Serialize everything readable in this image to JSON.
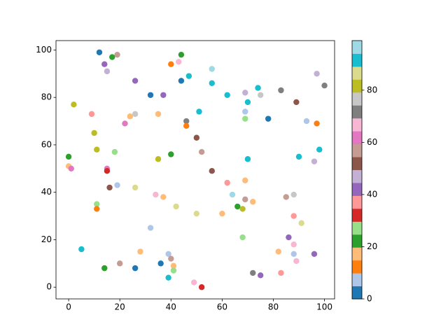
{
  "chart_data": {
    "type": "scatter",
    "x": [
      12,
      19,
      17,
      44,
      14,
      15,
      40,
      43,
      47,
      44,
      26,
      56,
      56,
      97,
      100,
      32,
      37,
      62,
      69,
      74,
      75,
      83,
      70,
      89,
      2,
      9,
      26,
      24,
      35,
      51,
      69,
      78,
      22,
      46,
      46,
      69,
      93,
      97,
      10,
      50,
      11,
      18,
      52,
      98,
      0,
      35,
      40,
      70,
      90,
      96,
      0,
      1,
      15,
      15,
      56,
      69,
      62,
      16,
      19,
      26,
      34,
      37,
      64,
      69,
      72,
      85,
      88,
      11,
      11,
      42,
      66,
      68,
      50,
      60,
      88,
      91,
      32,
      68,
      86,
      88,
      5,
      28,
      39,
      82,
      88,
      96,
      40,
      36,
      89,
      20,
      14,
      26,
      41,
      41,
      72,
      83,
      75,
      39,
      49,
      52
    ],
    "y": [
      99,
      98,
      97,
      98,
      94,
      91,
      94,
      95,
      89,
      87,
      87,
      92,
      86,
      90,
      85,
      81,
      81,
      81,
      82,
      84,
      81,
      83,
      78,
      78,
      77,
      73,
      73,
      72,
      73,
      74,
      74,
      71,
      69,
      70,
      68,
      71,
      70,
      69,
      65,
      63,
      58,
      57,
      57,
      58,
      55,
      54,
      56,
      54,
      55,
      53,
      51,
      50,
      50,
      49,
      49,
      45,
      44,
      42,
      43,
      42,
      39,
      38,
      39,
      37,
      36,
      38,
      39,
      35,
      33,
      34,
      34,
      33,
      31,
      31,
      30,
      27,
      25,
      21,
      21,
      18,
      16,
      15,
      14,
      15,
      14,
      14,
      12,
      10,
      11,
      10,
      8,
      8,
      9,
      7,
      6,
      6,
      5,
      4,
      2,
      0
    ],
    "c": [
      2,
      57,
      22,
      22,
      42,
      47,
      12,
      67,
      92,
      2,
      42,
      97,
      92,
      47,
      72,
      2,
      42,
      92,
      47,
      92,
      77,
      72,
      92,
      52,
      82,
      37,
      77,
      17,
      17,
      92,
      7,
      2,
      62,
      72,
      12,
      27,
      7,
      12,
      82,
      52,
      82,
      27,
      57,
      92,
      22,
      82,
      22,
      92,
      92,
      47,
      17,
      62,
      62,
      32,
      52,
      17,
      37,
      52,
      7,
      87,
      67,
      17,
      97,
      57,
      17,
      57,
      77,
      27,
      12,
      87,
      22,
      82,
      87,
      17,
      37,
      87,
      7,
      27,
      42,
      67,
      92,
      17,
      7,
      17,
      7,
      42,
      57,
      2,
      67,
      57,
      22,
      2,
      17,
      27,
      72,
      37,
      42,
      92,
      67,
      32
    ],
    "colormap": [
      "#1f77b4",
      "#aec7e8",
      "#ff7f0e",
      "#ffbb78",
      "#2ca02c",
      "#98df8a",
      "#d62728",
      "#ff9896",
      "#9467bd",
      "#c5b0d5",
      "#8c564b",
      "#c49c94",
      "#e377c2",
      "#f7b6d2",
      "#7f7f7f",
      "#c7c7c7",
      "#bcbd22",
      "#dbdb8d",
      "#17becf",
      "#9edae5"
    ],
    "clim": [
      0,
      99
    ],
    "cticks": [
      0,
      20,
      40,
      60,
      80
    ],
    "xlim": [
      -4.95,
      103.95
    ],
    "xticks": [
      0,
      20,
      40,
      60,
      80,
      100
    ],
    "ylim": [
      -4.95,
      103.95
    ],
    "yticks": [
      0,
      20,
      40,
      60,
      80,
      100
    ]
  }
}
